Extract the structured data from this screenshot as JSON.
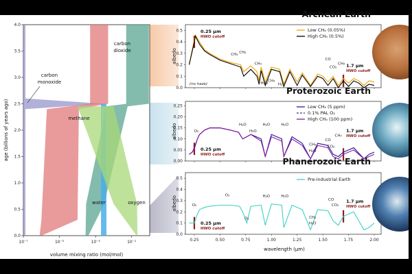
{
  "colors": {
    "co2": "#5aa590",
    "co": "#8e8ec8",
    "ch4": "#e07070",
    "ch4_dark": "#b8646e",
    "water": "#4aaee8",
    "oxygen": "#a8d878",
    "archean_low": "#f0a000",
    "archean_high": "#000000",
    "proterozoic_low": "#1f1aa6",
    "proterozoic_pal": "#3a2a9a",
    "proterozoic_high": "#8a1a9e",
    "phanerozoic": "#3ad2c2",
    "cutoff": "#8b1c1c"
  },
  "left_chart": {
    "xlabel": "volume mixing ratio (mol/mol)",
    "ylabel": "age (billions of years ago)",
    "xticks": [
      "10⁻⁷",
      "10⁻⁵",
      "10⁻³",
      "10⁻¹"
    ],
    "yticks": [
      "0.0",
      "0.5",
      "1.0",
      "1.5",
      "2.0",
      "2.5",
      "3.0",
      "3.5",
      "4.0"
    ],
    "labels": {
      "co2_l1": "carbon",
      "co2_l2": "dioxide",
      "co_l1": "carbon",
      "co_l2": "monoxide",
      "ch4": "methane",
      "water": "water",
      "oxygen": "oxygen"
    }
  },
  "archean": {
    "title": "Archean Earth",
    "ylabel": "albedo",
    "yticks": [
      "0.0",
      "0.1",
      "0.2",
      "0.3",
      "0.4",
      "0.5"
    ],
    "legend": [
      "Low CH₄ (0.05%)",
      "High CH₄ (0.5%)"
    ],
    "note": "(no haze)",
    "uv_val": "0.25 μm",
    "uv_sub": "HWO cutoff",
    "ir_val": "1.7 μm",
    "ir_sub": "HWO cutoff",
    "features": {
      "ch4_a": "CH₄",
      "ch4_b": "CH₄",
      "h2o_a": "H₂O",
      "ch4_c": "CH₄",
      "ch4_d": "CH₄",
      "h2o_b": "H₂O",
      "co": "CO",
      "co2": "CO₂",
      "ch4_e": "CH₄"
    }
  },
  "proterozoic": {
    "title": "Proterozoic Earth",
    "ylabel": "albedo",
    "yticks": [
      "0.00",
      "0.05",
      "0.10",
      "0.15",
      "0.20",
      "0.25"
    ],
    "legend": [
      "Low CH₄ (5 ppm)",
      "0.1% PAL O₂",
      "High CH₄ (100 ppm)"
    ],
    "uv_val": "0.25 μm",
    "uv_sub": "HWO cutoff",
    "ir_val": "1.7 μm",
    "ir_sub": "HWO cutoff",
    "features": {
      "o2": "O₂",
      "h2o_a": "H₂O",
      "h2o_b": "H₂O",
      "h2o_c": "H₂O",
      "h2o_d": "H₂O",
      "ch4": "CH₄",
      "h2o_e": "H₂O",
      "co": "CO",
      "co2": "CO₂",
      "ch4_b": "CH₄"
    }
  },
  "phanerozoic": {
    "title": "Phanerozoic Earth",
    "ylabel": "albedo",
    "yticks": [
      "0.0",
      "0.1",
      "0.2",
      "0.3",
      "0.4",
      "0.5"
    ],
    "xticks": [
      "0.25",
      "0.50",
      "0.75",
      "1.00",
      "1.25",
      "1.50",
      "1.75",
      "2.00"
    ],
    "xlabel": "wavelength (μm)",
    "legend": [
      "Pre-industrial Earth"
    ],
    "uv_val": "0.25 μm",
    "uv_sub": "HWO cutoff",
    "ir_val": "1.7 μm",
    "ir_sub": "HWO cutoff",
    "features": {
      "o3": "O₃",
      "o2_a": "O₂",
      "o2_b": "O₂",
      "h2o_a": "H₂O",
      "h2o_b": "H₂O",
      "ch4": "CH₄",
      "h2o_c": "H₂O",
      "co": "CO",
      "co2": "CO₂"
    }
  },
  "chart_data": [
    {
      "type": "area",
      "title": "Atmospheric composition through time",
      "xlabel": "volume mixing ratio (mol/mol)",
      "xscale": "log",
      "xlim": [
        1e-07,
        1
      ],
      "ylabel": "age (billions of years ago)",
      "ylim": [
        0,
        4
      ],
      "series": [
        {
          "name": "carbon dioxide",
          "bands": [
            {
              "age": 4.0,
              "lo": 0.05,
              "hi": 0.9
            },
            {
              "age": 2.5,
              "lo": 0.05,
              "hi": 0.9
            },
            {
              "age": 2.45,
              "lo": 0.004,
              "hi": 0.06
            },
            {
              "age": 0.6,
              "lo": 0.0003,
              "hi": 0.003
            },
            {
              "age": 0.0,
              "lo": 0.00028,
              "hi": 0.0004
            }
          ]
        },
        {
          "name": "carbon monoxide",
          "bands": [
            {
              "age": 4.0,
              "lo": 1e-07,
              "hi": 1.3e-07
            },
            {
              "age": 2.6,
              "lo": 1e-07,
              "hi": 1.3e-07
            },
            {
              "age": 2.5,
              "lo": 1e-07,
              "hi": 0.003
            },
            {
              "age": 2.4,
              "lo": 1e-07,
              "hi": 1.3e-07
            },
            {
              "age": 0.0,
              "lo": 1e-07,
              "hi": 1.3e-07
            }
          ]
        },
        {
          "name": "methane",
          "bands": [
            {
              "age": 4.0,
              "lo": 0.0005,
              "hi": 0.005
            },
            {
              "age": 2.5,
              "lo": 0.0005,
              "hi": 0.005
            },
            {
              "age": 2.4,
              "lo": 2e-06,
              "hi": 0.00012
            },
            {
              "age": 0.3,
              "lo": 1e-06,
              "hi": 0.0001
            },
            {
              "age": 0.0,
              "lo": 8e-07,
              "hi": 1e-06
            }
          ]
        },
        {
          "name": "water",
          "bands": [
            {
              "age": 2.5,
              "lo": 0.002,
              "hi": 0.004
            },
            {
              "age": 0.0,
              "lo": 0.002,
              "hi": 0.004
            }
          ]
        },
        {
          "name": "oxygen",
          "bands": [
            {
              "age": 2.45,
              "lo": 0.0001,
              "hi": 0.01
            },
            {
              "age": 0.6,
              "lo": 0.01,
              "hi": 0.2
            },
            {
              "age": 0.0,
              "lo": 0.19,
              "hi": 0.21
            }
          ]
        }
      ],
      "annotations": [
        "carbon dioxide",
        "carbon monoxide",
        "methane",
        "water",
        "oxygen"
      ]
    },
    {
      "type": "line",
      "title": "Archean Earth",
      "xlabel": "wavelength (μm)",
      "ylabel": "albedo",
      "xlim": [
        0.2,
        2.0
      ],
      "ylim": [
        0,
        0.55
      ],
      "x": [
        0.2,
        0.25,
        0.26,
        0.3,
        0.35,
        0.4,
        0.5,
        0.6,
        0.7,
        0.73,
        0.8,
        0.86,
        0.88,
        0.9,
        0.94,
        1.0,
        1.08,
        1.12,
        1.18,
        1.25,
        1.3,
        1.38,
        1.45,
        1.5,
        1.55,
        1.6,
        1.65,
        1.7,
        1.75,
        1.8,
        1.85,
        1.9,
        1.95,
        2.0
      ],
      "series": [
        {
          "name": "Low CH₄ (0.05%)",
          "values": [
            0.2,
            0.42,
            0.46,
            0.4,
            0.33,
            0.3,
            0.25,
            0.22,
            0.2,
            0.14,
            0.19,
            0.14,
            0.06,
            0.18,
            0.05,
            0.18,
            0.16,
            0.03,
            0.16,
            0.05,
            0.13,
            0.02,
            0.12,
            0.1,
            0.05,
            0.1,
            0.02,
            0.08,
            0.04,
            0.08,
            0.06,
            0.02,
            0.06,
            0.05
          ]
        },
        {
          "name": "High CH₄ (0.5%)",
          "values": [
            0.2,
            0.4,
            0.45,
            0.38,
            0.32,
            0.29,
            0.24,
            0.21,
            0.18,
            0.1,
            0.16,
            0.1,
            0.03,
            0.15,
            0.02,
            0.16,
            0.14,
            0.01,
            0.14,
            0.02,
            0.11,
            0.01,
            0.1,
            0.08,
            0.02,
            0.08,
            0.0,
            0.06,
            0.01,
            0.06,
            0.04,
            0.0,
            0.03,
            0.02
          ]
        }
      ],
      "annotations": [
        "CH₄",
        "H₂O",
        "CO",
        "CO₂",
        "0.25 μm HWO cutoff",
        "1.7 μm HWO cutoff",
        "(no haze)"
      ]
    },
    {
      "type": "line",
      "title": "Proterozoic Earth",
      "xlabel": "wavelength (μm)",
      "ylabel": "albedo",
      "xlim": [
        0.2,
        2.0
      ],
      "ylim": [
        0,
        0.27
      ],
      "x": [
        0.2,
        0.23,
        0.25,
        0.28,
        0.3,
        0.35,
        0.4,
        0.5,
        0.6,
        0.68,
        0.72,
        0.76,
        0.8,
        0.9,
        0.94,
        1.0,
        1.1,
        1.12,
        1.2,
        1.3,
        1.38,
        1.45,
        1.55,
        1.6,
        1.65,
        1.7,
        1.8,
        1.9,
        1.95,
        2.0
      ],
      "series": [
        {
          "name": "Low CH₄ (5 ppm)",
          "values": [
            0.03,
            0.04,
            0.06,
            0.1,
            0.12,
            0.14,
            0.15,
            0.15,
            0.14,
            0.13,
            0.1,
            0.11,
            0.12,
            0.1,
            0.02,
            0.12,
            0.1,
            0.02,
            0.11,
            0.08,
            0.01,
            0.08,
            0.07,
            0.03,
            0.02,
            0.04,
            0.06,
            0.01,
            0.03,
            0.04
          ]
        },
        {
          "name": "0.1% PAL O₂",
          "values": [
            0.03,
            0.04,
            0.055,
            0.1,
            0.12,
            0.14,
            0.15,
            0.15,
            0.14,
            0.13,
            0.1,
            0.11,
            0.12,
            0.1,
            0.02,
            0.12,
            0.1,
            0.02,
            0.11,
            0.08,
            0.01,
            0.08,
            0.07,
            0.03,
            0.02,
            0.04,
            0.06,
            0.01,
            0.03,
            0.04
          ]
        },
        {
          "name": "High CH₄ (100 ppm)",
          "values": [
            0.03,
            0.04,
            0.055,
            0.1,
            0.12,
            0.14,
            0.15,
            0.15,
            0.14,
            0.13,
            0.1,
            0.11,
            0.12,
            0.09,
            0.02,
            0.11,
            0.09,
            0.02,
            0.1,
            0.07,
            0.01,
            0.07,
            0.06,
            0.02,
            0.01,
            0.03,
            0.05,
            0.01,
            0.02,
            0.03
          ]
        }
      ],
      "annotations": [
        "O₂",
        "H₂O",
        "CH₄",
        "CO",
        "CO₂",
        "0.25 μm HWO cutoff",
        "1.7 μm HWO cutoff"
      ]
    },
    {
      "type": "line",
      "title": "Phanerozoic Earth",
      "xlabel": "wavelength (μm)",
      "ylabel": "albedo",
      "xlim": [
        0.2,
        2.0
      ],
      "ylim": [
        0,
        0.55
      ],
      "x": [
        0.2,
        0.25,
        0.28,
        0.3,
        0.35,
        0.4,
        0.5,
        0.6,
        0.69,
        0.72,
        0.76,
        0.8,
        0.9,
        0.94,
        1.0,
        1.1,
        1.12,
        1.2,
        1.3,
        1.38,
        1.45,
        1.55,
        1.6,
        1.65,
        1.7,
        1.8,
        1.9,
        1.95,
        2.0
      ],
      "series": [
        {
          "name": "Pre-industrial Earth",
          "values": [
            0.1,
            0.1,
            0.18,
            0.22,
            0.24,
            0.25,
            0.26,
            0.26,
            0.25,
            0.2,
            0.1,
            0.25,
            0.26,
            0.08,
            0.27,
            0.26,
            0.06,
            0.26,
            0.22,
            0.04,
            0.22,
            0.21,
            0.12,
            0.08,
            0.16,
            0.2,
            0.04,
            0.06,
            0.1
          ]
        }
      ],
      "annotations": [
        "O₃",
        "O₂",
        "H₂O",
        "CH₄",
        "CO",
        "CO₂",
        "0.25 μm HWO cutoff",
        "1.7 μm HWO cutoff"
      ]
    }
  ]
}
